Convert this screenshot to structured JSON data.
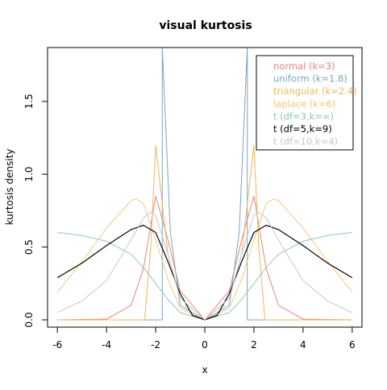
{
  "chart_data": {
    "type": "line",
    "title": "visual kurtosis",
    "xlabel": "x",
    "ylabel": "kurtosis density",
    "xlim": [
      -6.4,
      6.4
    ],
    "ylim": [
      -0.05,
      1.87
    ],
    "xticks": [
      -6,
      -4,
      -2,
      0,
      2,
      4,
      6
    ],
    "yticks": [
      0.0,
      0.5,
      1.0,
      1.5
    ],
    "xtick_labels": [
      "-6",
      "-4",
      "-2",
      "0",
      "2",
      "4",
      "6"
    ],
    "ytick_labels": [
      "0.0",
      "0.5",
      "1.0",
      "1.5"
    ],
    "legend_position": "top-right",
    "grid": false,
    "series": [
      {
        "name": "normal (k=3)",
        "color": "#e8847c",
        "points": [
          [
            -6,
            0
          ],
          [
            -4,
            0.005
          ],
          [
            -3,
            0.1
          ],
          [
            -2.5,
            0.35
          ],
          [
            -2,
            0.85
          ],
          [
            -1.5,
            0.55
          ],
          [
            -1,
            0.2
          ],
          [
            0,
            0
          ],
          [
            1,
            0.2
          ],
          [
            1.5,
            0.55
          ],
          [
            2,
            0.85
          ],
          [
            2.5,
            0.35
          ],
          [
            3,
            0.1
          ],
          [
            4,
            0.005
          ],
          [
            6,
            0
          ]
        ]
      },
      {
        "name": "uniform (k=1.8)",
        "color": "#7fa4c0",
        "points": [
          [
            -6,
            0
          ],
          [
            -1.73,
            0
          ],
          [
            -1.73,
            1.87
          ],
          [
            -1.4,
            0.6
          ],
          [
            -1,
            0.1
          ],
          [
            0,
            0
          ],
          [
            1,
            0.1
          ],
          [
            1.4,
            0.6
          ],
          [
            1.73,
            1.87
          ],
          [
            1.73,
            0
          ],
          [
            6,
            0
          ]
        ]
      },
      {
        "name": "triangular (k=2.4)",
        "color": "#f2b45c",
        "points": [
          [
            -6,
            0
          ],
          [
            -2.45,
            0
          ],
          [
            -2.2,
            0.5
          ],
          [
            -2,
            1.2
          ],
          [
            -1.5,
            0.45
          ],
          [
            -1,
            0.15
          ],
          [
            0,
            0
          ],
          [
            1,
            0.15
          ],
          [
            1.5,
            0.45
          ],
          [
            2,
            1.2
          ],
          [
            2.2,
            0.5
          ],
          [
            2.45,
            0
          ],
          [
            6,
            0
          ]
        ]
      },
      {
        "name": "laplace (k=6)",
        "color": "#f5c87a",
        "points": [
          [
            -6,
            0.19
          ],
          [
            -5,
            0.4
          ],
          [
            -4,
            0.63
          ],
          [
            -3,
            0.82
          ],
          [
            -2.8,
            0.83
          ],
          [
            -2.5,
            0.8
          ],
          [
            -2,
            0.55
          ],
          [
            -1.5,
            0.28
          ],
          [
            -1,
            0.08
          ],
          [
            0,
            0
          ],
          [
            1,
            0.08
          ],
          [
            1.5,
            0.28
          ],
          [
            2,
            0.55
          ],
          [
            2.5,
            0.8
          ],
          [
            2.8,
            0.83
          ],
          [
            3,
            0.82
          ],
          [
            4,
            0.63
          ],
          [
            5,
            0.4
          ],
          [
            6,
            0.19
          ]
        ]
      },
      {
        "name": "t (df=3,k=∞)",
        "color": "#8fc7c0",
        "points": [
          [
            -6,
            0.6
          ],
          [
            -5,
            0.58
          ],
          [
            -4,
            0.54
          ],
          [
            -3,
            0.45
          ],
          [
            -2.5,
            0.36
          ],
          [
            -2,
            0.25
          ],
          [
            -1.5,
            0.14
          ],
          [
            -1,
            0.05
          ],
          [
            0,
            0
          ],
          [
            1,
            0.05
          ],
          [
            1.5,
            0.14
          ],
          [
            2,
            0.25
          ],
          [
            2.5,
            0.36
          ],
          [
            3,
            0.45
          ],
          [
            4,
            0.54
          ],
          [
            5,
            0.58
          ],
          [
            6,
            0.6
          ]
        ]
      },
      {
        "name": "t (df=5,k=9)",
        "color": "#000000",
        "points": [
          [
            -6,
            0.29
          ],
          [
            -5,
            0.39
          ],
          [
            -4,
            0.51
          ],
          [
            -3,
            0.62
          ],
          [
            -2.5,
            0.65
          ],
          [
            -2,
            0.6
          ],
          [
            -1.5,
            0.4
          ],
          [
            -1,
            0.18
          ],
          [
            -0.5,
            0.03
          ],
          [
            0,
            0
          ],
          [
            0.5,
            0.03
          ],
          [
            1,
            0.18
          ],
          [
            1.5,
            0.4
          ],
          [
            2,
            0.6
          ],
          [
            2.5,
            0.65
          ],
          [
            3,
            0.62
          ],
          [
            4,
            0.51
          ],
          [
            5,
            0.39
          ],
          [
            6,
            0.29
          ]
        ]
      },
      {
        "name": "t (df=10,k=4)",
        "color": "#c0c8d4",
        "points": [
          [
            -6,
            0.05
          ],
          [
            -5,
            0.13
          ],
          [
            -4,
            0.27
          ],
          [
            -3,
            0.55
          ],
          [
            -2.5,
            0.7
          ],
          [
            -2.2,
            0.74
          ],
          [
            -2,
            0.72
          ],
          [
            -1.5,
            0.45
          ],
          [
            -1,
            0.15
          ],
          [
            0,
            0
          ],
          [
            1,
            0.15
          ],
          [
            1.5,
            0.45
          ],
          [
            2,
            0.72
          ],
          [
            2.2,
            0.74
          ],
          [
            2.5,
            0.7
          ],
          [
            3,
            0.55
          ],
          [
            4,
            0.27
          ],
          [
            5,
            0.13
          ],
          [
            6,
            0.05
          ]
        ]
      }
    ]
  }
}
